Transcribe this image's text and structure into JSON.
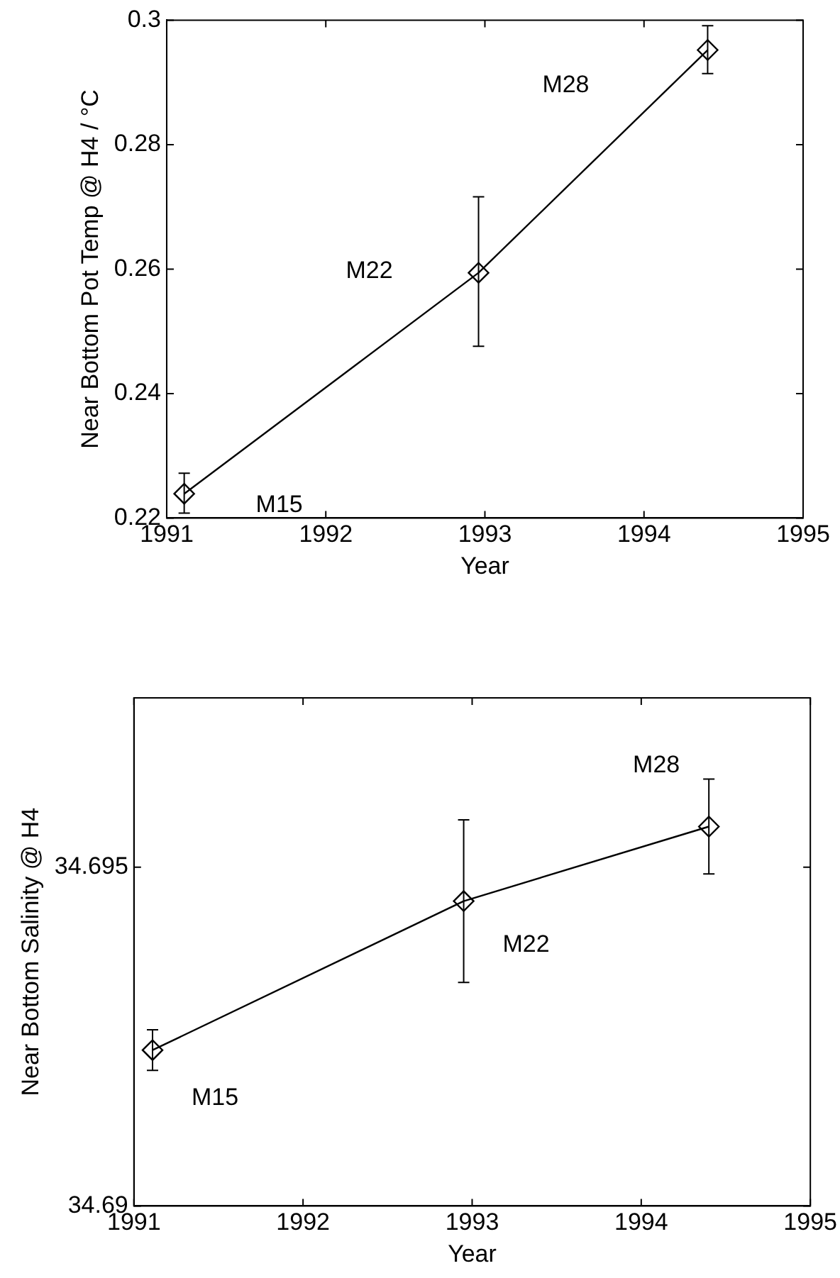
{
  "chart_data": [
    {
      "type": "line",
      "xlabel": "Year",
      "ylabel": "Near Bottom Pot Temp @ H4 / °C",
      "marker": "diamond",
      "grid": false,
      "legend": false,
      "xlim": [
        1991,
        1995
      ],
      "xticks": [
        1991,
        1992,
        1993,
        1994,
        1995
      ],
      "ylim": [
        0.22,
        0.3
      ],
      "yticks": [
        0.22,
        0.24,
        0.26,
        0.28,
        0.3
      ],
      "series": [
        {
          "color": "#000000",
          "x": [
            1991.11,
            1992.96,
            1994.4
          ],
          "values": [
            0.2239,
            0.2594,
            0.2952
          ],
          "errors": [
            [
              0.2208,
              0.2272
            ],
            [
              0.2476,
              0.2716
            ],
            [
              0.2914,
              0.2991
            ]
          ]
        }
      ],
      "annotations": [
        "M15",
        "M22",
        "M28"
      ]
    },
    {
      "type": "line",
      "xlabel": "Year",
      "ylabel": "Near Bottom Salinity @ H4",
      "marker": "diamond",
      "grid": false,
      "legend": false,
      "xlim": [
        1991,
        1995
      ],
      "xticks": [
        1991,
        1992,
        1993,
        1994,
        1995
      ],
      "ylim": [
        34.69,
        34.6975
      ],
      "yticks": [
        34.69,
        34.695
      ],
      "series": [
        {
          "color": "#000000",
          "x": [
            1991.11,
            1992.95,
            1994.4
          ],
          "values": [
            34.6923,
            34.6945,
            34.6956
          ],
          "errors": [
            [
              34.692,
              34.6926
            ],
            [
              34.6933,
              34.6957
            ],
            [
              34.6949,
              34.6963
            ]
          ]
        }
      ],
      "annotations": [
        "M15",
        "M22",
        "M28"
      ]
    }
  ]
}
